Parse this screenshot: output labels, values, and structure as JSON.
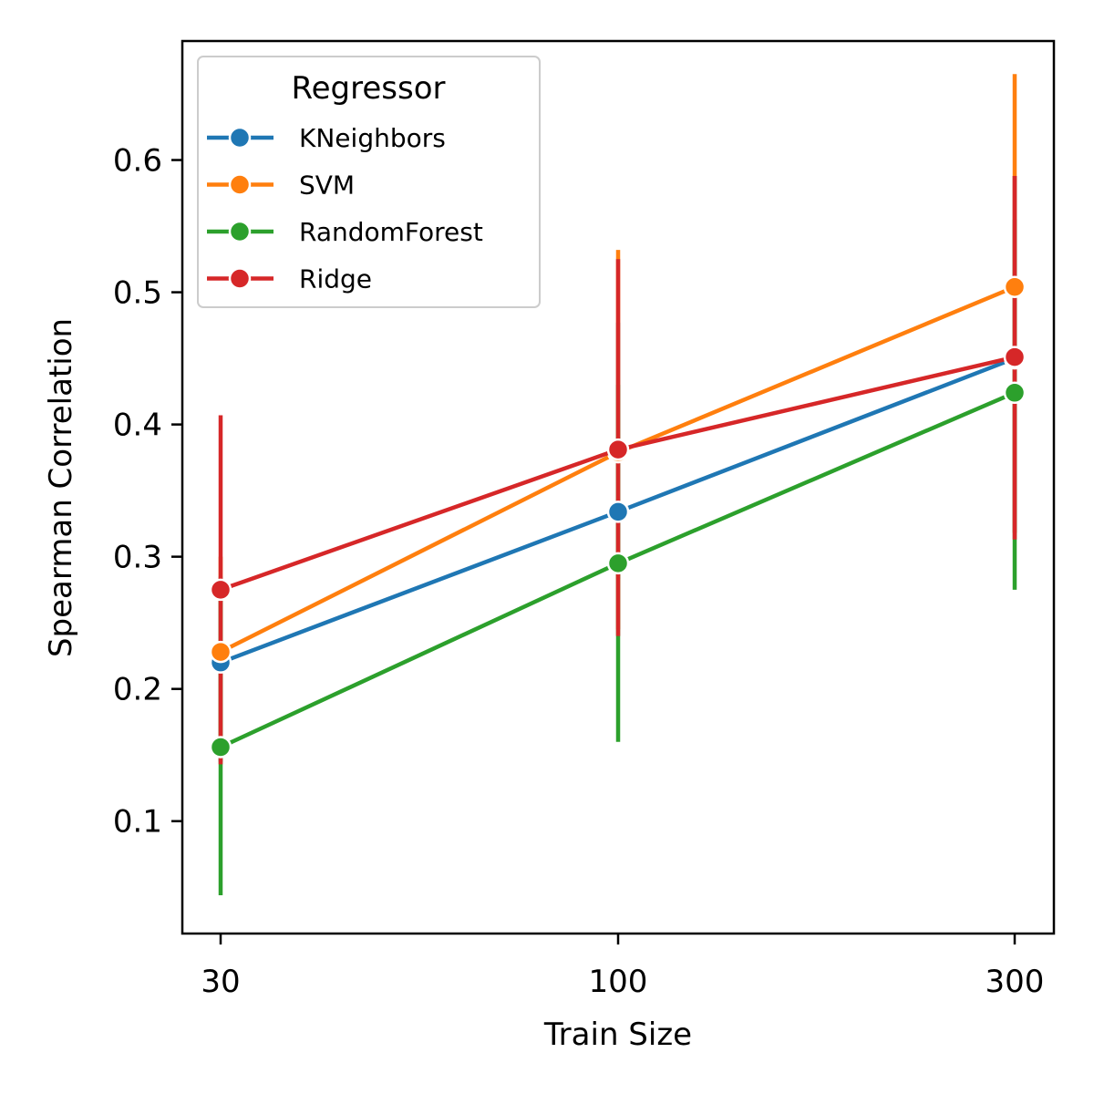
{
  "chart_data": {
    "type": "line",
    "xlabel": "Train Size",
    "ylabel": "Spearman Correlation",
    "x": [
      30,
      100,
      300
    ],
    "x_tick_labels": [
      "30",
      "100",
      "300"
    ],
    "x_scale": "categorical",
    "ylim": [
      0.015,
      0.69
    ],
    "y_ticks": [
      0.1,
      0.2,
      0.3,
      0.4,
      0.5,
      0.6
    ],
    "y_tick_labels": [
      "0.1",
      "0.2",
      "0.3",
      "0.4",
      "0.5",
      "0.6"
    ],
    "grid": false,
    "legend": {
      "title": "Regressor",
      "placement": "top-left"
    },
    "series": [
      {
        "name": "KNeighbors",
        "color": "#1f77b4",
        "values": [
          0.22,
          0.334,
          0.45
        ],
        "error_low": [
          0.145,
          0.283,
          0.318
        ],
        "error_high": [
          0.285,
          0.477,
          0.588
        ]
      },
      {
        "name": "SVM",
        "color": "#ff7f0e",
        "values": [
          0.228,
          0.379,
          0.504
        ],
        "error_low": [
          0.148,
          0.245,
          0.318
        ],
        "error_high": [
          0.3,
          0.532,
          0.665
        ]
      },
      {
        "name": "RandomForest",
        "color": "#2ca02c",
        "values": [
          0.156,
          0.295,
          0.424
        ],
        "error_low": [
          0.044,
          0.16,
          0.275
        ],
        "error_high": [
          0.27,
          0.43,
          0.555
        ]
      },
      {
        "name": "Ridge",
        "color": "#d62728",
        "values": [
          0.275,
          0.381,
          0.451
        ],
        "error_low": [
          0.143,
          0.24,
          0.313
        ],
        "error_high": [
          0.407,
          0.525,
          0.588
        ]
      }
    ]
  }
}
